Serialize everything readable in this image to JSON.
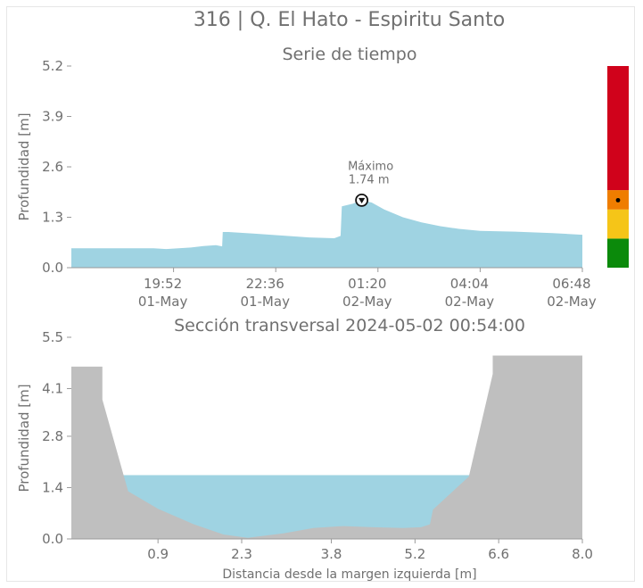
{
  "title": "316 | Q. El Hato - Espiritu Santo",
  "colors": {
    "water": "#9fd3e2",
    "ground": "#bfbfbf",
    "text": "#707070",
    "axis": "#9a9a9a",
    "alert_red": "#d0021b",
    "alert_orange": "#ef7d00",
    "alert_yellow": "#f5c518",
    "alert_green": "#0b8a0b"
  },
  "chart_data": [
    {
      "type": "area",
      "title": "Serie de tiempo",
      "ylabel": "Profundidad [m]",
      "xlabel": "",
      "ylim": [
        0,
        5.2
      ],
      "yticks": [
        "0.0",
        "1.3",
        "2.6",
        "3.9",
        "5.2"
      ],
      "xticks": [
        {
          "time": "2024-05-01 19:52",
          "label": [
            "19:52",
            "01-May"
          ]
        },
        {
          "time": "2024-05-01 22:36",
          "label": [
            "22:36",
            "01-May"
          ]
        },
        {
          "time": "2024-05-02 01:20",
          "label": [
            "01:20",
            "02-May"
          ]
        },
        {
          "time": "2024-05-02 04:04",
          "label": [
            "04:04",
            "02-May"
          ]
        },
        {
          "time": "2024-05-02 06:48",
          "label": [
            "06:48",
            "02-May"
          ]
        }
      ],
      "x": [
        "2024-05-01 17:08",
        "2024-05-01 17:30",
        "2024-05-01 18:00",
        "2024-05-01 18:30",
        "2024-05-01 19:00",
        "2024-05-01 19:20",
        "2024-05-01 19:40",
        "2024-05-01 20:00",
        "2024-05-01 20:20",
        "2024-05-01 20:40",
        "2024-05-01 21:00",
        "2024-05-01 21:10",
        "2024-05-01 21:11",
        "2024-05-01 21:20",
        "2024-05-01 22:00",
        "2024-05-01 22:36",
        "2024-05-01 23:30",
        "2024-05-02 00:10",
        "2024-05-02 00:20",
        "2024-05-02 00:22",
        "2024-05-02 00:40",
        "2024-05-02 00:54",
        "2024-05-02 01:10",
        "2024-05-02 01:30",
        "2024-05-02 02:00",
        "2024-05-02 02:30",
        "2024-05-02 03:00",
        "2024-05-02 03:30",
        "2024-05-02 04:04",
        "2024-05-02 05:00",
        "2024-05-02 06:00",
        "2024-05-02 06:48"
      ],
      "values": [
        0.5,
        0.5,
        0.5,
        0.5,
        0.5,
        0.5,
        0.48,
        0.5,
        0.52,
        0.56,
        0.58,
        0.55,
        0.92,
        0.92,
        0.88,
        0.84,
        0.78,
        0.76,
        0.82,
        1.58,
        1.65,
        1.74,
        1.68,
        1.5,
        1.3,
        1.17,
        1.07,
        1.0,
        0.95,
        0.93,
        0.89,
        0.85
      ],
      "annotation": {
        "x": "2024-05-02 00:54",
        "y": 1.74,
        "text": [
          "Máximo",
          "1.74 m"
        ]
      },
      "alert_levels": [
        {
          "color": "#0b8a0b",
          "from": 0.0,
          "to": 0.75
        },
        {
          "color": "#f5c518",
          "from": 0.75,
          "to": 1.5
        },
        {
          "color": "#ef7d00",
          "from": 1.5,
          "to": 2.0
        },
        {
          "color": "#d0021b",
          "from": 2.0,
          "to": 5.2
        }
      ],
      "current_level": 1.74
    },
    {
      "type": "area",
      "title": "Sección transversal 2024-05-02 00:54:00",
      "ylabel": "Profundidad [m]",
      "xlabel": "Distancia desde la margen izquierda [m]",
      "xlim": [
        -0.55,
        8.0
      ],
      "ylim": [
        0,
        5.5
      ],
      "yticks": [
        "0.0",
        "1.4",
        "2.8",
        "4.1",
        "5.5"
      ],
      "xticks": [
        "0.9",
        "2.3",
        "3.8",
        "5.2",
        "6.6",
        "8.0"
      ],
      "water_level": 1.74,
      "ground_x": [
        -0.55,
        -0.03,
        -0.03,
        0.4,
        0.9,
        1.5,
        2.0,
        2.4,
        3.0,
        3.5,
        4.0,
        4.5,
        5.0,
        5.3,
        5.45,
        5.5,
        6.1,
        6.4,
        6.5,
        6.5,
        8.0
      ],
      "ground_y": [
        4.7,
        4.7,
        3.8,
        1.3,
        0.82,
        0.4,
        0.12,
        0.03,
        0.15,
        0.3,
        0.35,
        0.32,
        0.3,
        0.32,
        0.4,
        0.8,
        1.7,
        3.8,
        4.5,
        5.0,
        5.0
      ]
    }
  ]
}
